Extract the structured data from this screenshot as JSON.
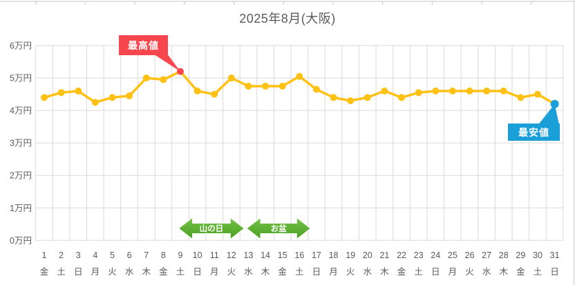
{
  "chart_data": {
    "type": "line",
    "title": "2025年8月(大阪)",
    "unit": "万円",
    "x": [
      1,
      2,
      3,
      4,
      5,
      6,
      7,
      8,
      9,
      10,
      11,
      12,
      13,
      14,
      15,
      16,
      17,
      18,
      19,
      20,
      21,
      22,
      23,
      24,
      25,
      26,
      27,
      28,
      29,
      30,
      31
    ],
    "weekdays": [
      "金",
      "土",
      "日",
      "月",
      "火",
      "水",
      "木",
      "金",
      "土",
      "日",
      "月",
      "火",
      "水",
      "木",
      "金",
      "土",
      "日",
      "月",
      "火",
      "水",
      "木",
      "金",
      "土",
      "日",
      "月",
      "火",
      "水",
      "木",
      "金",
      "土",
      "日"
    ],
    "series": [
      {
        "color": "#FFC115",
        "values": [
          4.4,
          4.55,
          4.6,
          4.25,
          4.4,
          4.45,
          5.0,
          4.95,
          5.2,
          4.6,
          4.5,
          5.0,
          4.75,
          4.75,
          4.75,
          5.05,
          4.65,
          4.4,
          4.3,
          4.4,
          4.6,
          4.4,
          4.55,
          4.6,
          4.6,
          4.6,
          4.6,
          4.6,
          4.4,
          4.5,
          4.2
        ]
      }
    ],
    "ylim": [
      0,
      6
    ],
    "ytick_labels": [
      "0万円",
      "1万円",
      "2万円",
      "3万円",
      "4万円",
      "5万円",
      "6万円"
    ],
    "grid": true,
    "grid_color": "#D9D9D9",
    "axis_text_color": "#595959",
    "annotations": {
      "max": {
        "label": "最高値",
        "day": 9,
        "value": 5.2,
        "color": "#F8464F",
        "text_color": "#ffffff"
      },
      "min": {
        "label": "最安値",
        "day": 31,
        "value": 4.2,
        "color": "#1B9FD9",
        "text_color": "#ffffff"
      },
      "ranges": [
        {
          "label": "山の日",
          "from_day": 8.9,
          "to_day": 12.75,
          "color_top": "#74C247",
          "color_bottom": "#4AA023",
          "text_color": "#ffffff"
        },
        {
          "label": "お盆",
          "from_day": 12.9,
          "to_day": 16.65,
          "color_top": "#74C247",
          "color_bottom": "#4AA023",
          "text_color": "#ffffff"
        }
      ]
    }
  }
}
